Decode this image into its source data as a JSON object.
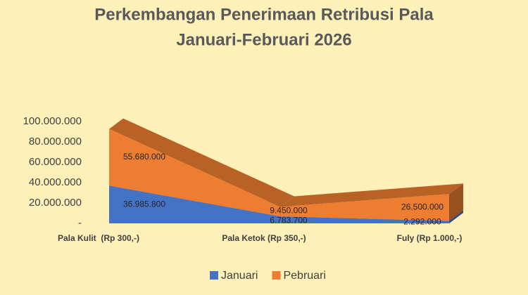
{
  "chart_data": {
    "type": "area3d",
    "title": "Perkembangan Penerimaan Retribusi Pala",
    "subtitle": "Januari-Februari 2026",
    "categories": [
      "Pala Kulit  (Rp 300,-)",
      "Pala Ketok (Rp 350,-)",
      "Fuly (Rp 1.000,-)"
    ],
    "stacked": true,
    "series": [
      {
        "name": "Januari",
        "color": "#4472c4",
        "values": [
          36985800,
          6783700,
          2292000
        ],
        "value_labels": [
          "36.985.800",
          "6.783.700",
          "2.292.000"
        ]
      },
      {
        "name": "Pebruari",
        "color": "#ed7d31",
        "values": [
          55680000,
          9450000,
          26500000
        ],
        "value_labels": [
          "55.680.000",
          "9.450.000",
          "26.500.000"
        ]
      }
    ],
    "ylim": [
      0,
      100000000
    ],
    "yticks": [
      {
        "value": 0,
        "label": "-"
      },
      {
        "value": 20000000,
        "label": "20.000.000"
      },
      {
        "value": 40000000,
        "label": "40.000.000"
      },
      {
        "value": 60000000,
        "label": "60.000.000"
      },
      {
        "value": 80000000,
        "label": "80.000.000"
      },
      {
        "value": 100000000,
        "label": "100.000.000"
      }
    ],
    "legend": "bottom"
  }
}
